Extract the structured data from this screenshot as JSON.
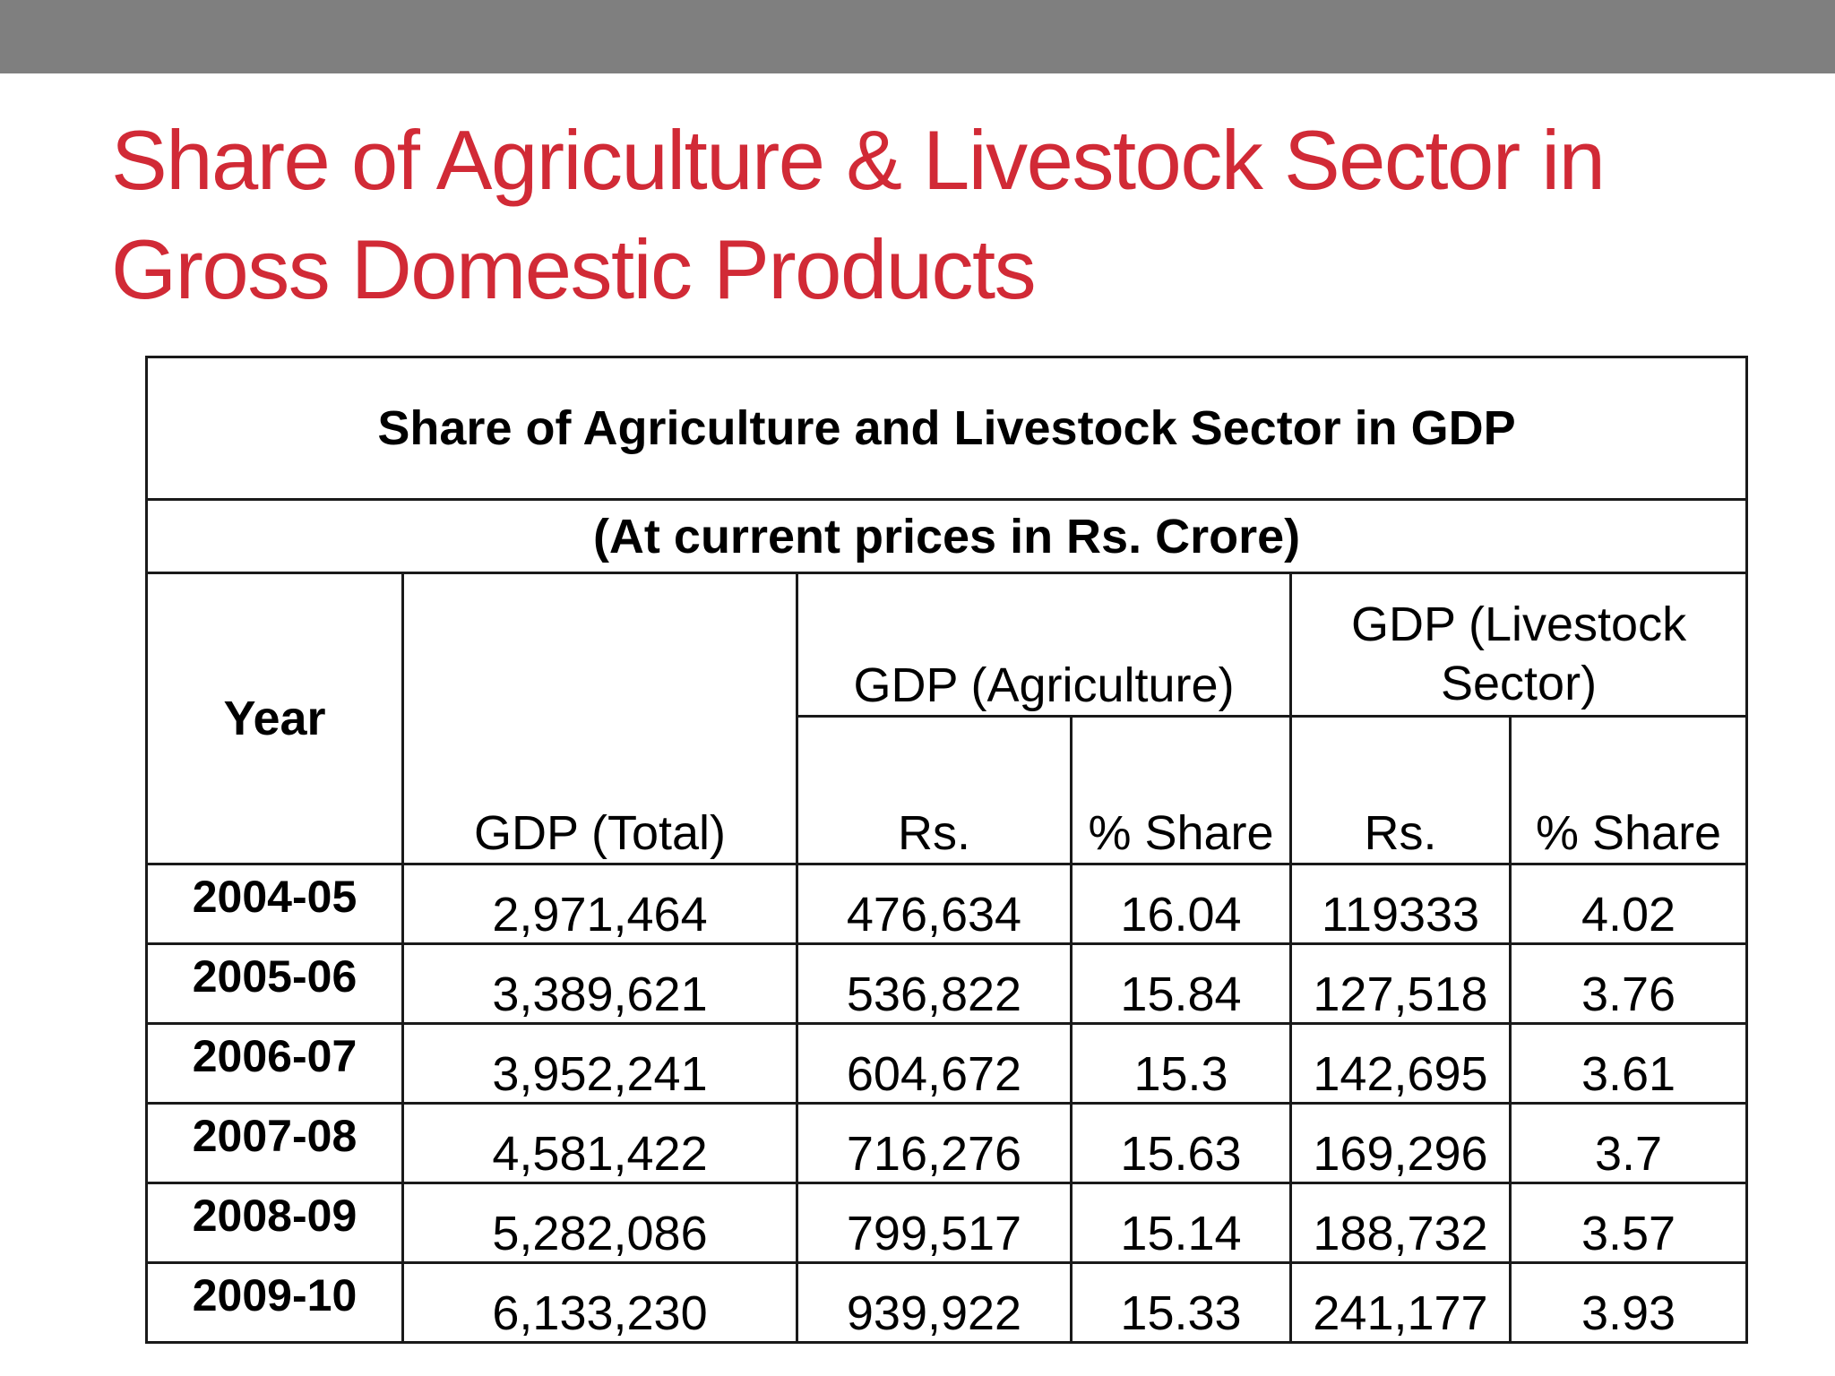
{
  "slide": {
    "title": "Share of Agriculture & Livestock Sector in Gross Domestic Products"
  },
  "table": {
    "caption": "Share of Agriculture and Livestock Sector in GDP",
    "units": "(At current prices in Rs.   Crore)",
    "headers": {
      "year": "Year",
      "gdp_total": "GDP (Total)",
      "gdp_agriculture": "GDP (Agriculture)",
      "gdp_livestock": "GDP (Livestock Sector)",
      "rs": "Rs.",
      "share": "% Share"
    },
    "rows": [
      {
        "year": "2004-05",
        "gdp_total": "2,971,464",
        "agri_rs": "476,634",
        "agri_share": "16.04",
        "live_rs": "119333",
        "live_share": "4.02"
      },
      {
        "year": "2005-06",
        "gdp_total": "3,389,621",
        "agri_rs": "536,822",
        "agri_share": "15.84",
        "live_rs": "127,518",
        "live_share": "3.76"
      },
      {
        "year": "2006-07",
        "gdp_total": "3,952,241",
        "agri_rs": "604,672",
        "agri_share": "15.3",
        "live_rs": "142,695",
        "live_share": "3.61"
      },
      {
        "year": "2007-08",
        "gdp_total": "4,581,422",
        "agri_rs": "716,276",
        "agri_share": "15.63",
        "live_rs": "169,296",
        "live_share": "3.7"
      },
      {
        "year": "2008-09",
        "gdp_total": "5,282,086",
        "agri_rs": "799,517",
        "agri_share": "15.14",
        "live_rs": "188,732",
        "live_share": "3.57"
      },
      {
        "year": "2009-10",
        "gdp_total": "6,133,230",
        "agri_rs": "939,922",
        "agri_share": "15.33",
        "live_rs": "241,177",
        "live_share": "3.93"
      }
    ]
  },
  "colors": {
    "title": "#d12a36",
    "topbar": "#7f7f7f",
    "border": "#1a1a1a"
  }
}
